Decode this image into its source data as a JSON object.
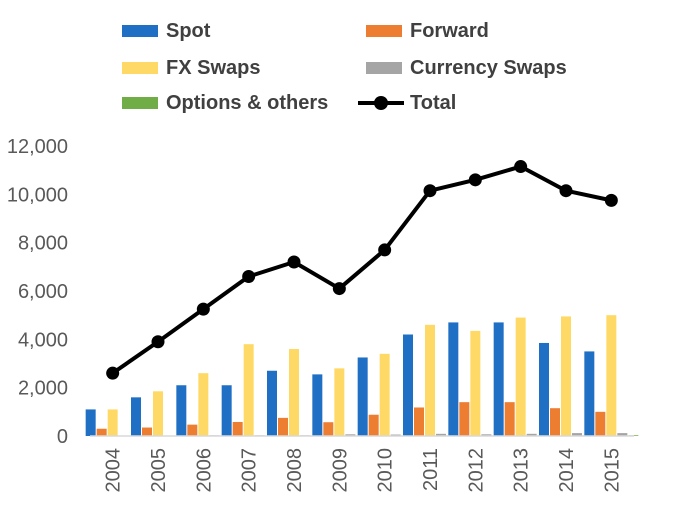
{
  "chart_data": {
    "type": "bar",
    "title": "",
    "xlabel": "",
    "ylabel": "",
    "ylim": [
      0,
      12000
    ],
    "yticks": [
      "0",
      "2,000",
      "4,000",
      "6,000",
      "8,000",
      "10,000",
      "12,000"
    ],
    "ytick_values": [
      0,
      2000,
      4000,
      6000,
      8000,
      10000,
      12000
    ],
    "grid": false,
    "legend_position": "top",
    "categories": [
      "2004",
      "2005",
      "2006",
      "2007",
      "2008",
      "2009",
      "2010",
      "2011",
      "2012",
      "2013",
      "2014",
      "2015"
    ],
    "series": [
      {
        "name": "Spot",
        "kind": "bar",
        "color": "#1F6FC5",
        "values": [
          1100,
          1600,
          2100,
          2100,
          2700,
          2550,
          3250,
          4200,
          4700,
          4700,
          3850,
          3500
        ]
      },
      {
        "name": "Forward",
        "kind": "bar",
        "color": "#ED7D31",
        "values": [
          300,
          350,
          470,
          580,
          750,
          570,
          880,
          1180,
          1400,
          1400,
          1150,
          1000
        ]
      },
      {
        "name": "FX Swaps",
        "kind": "bar",
        "color": "#FFD966",
        "values": [
          1100,
          1850,
          2600,
          3800,
          3600,
          2800,
          3400,
          4600,
          4350,
          4900,
          4950,
          5000
        ]
      },
      {
        "name": "Currency Swaps",
        "kind": "bar",
        "color": "#A5A5A5",
        "values": [
          20,
          20,
          30,
          30,
          30,
          70,
          60,
          90,
          70,
          90,
          120,
          120
        ]
      },
      {
        "name": "Options & others",
        "kind": "bar",
        "color": "#70AD47",
        "values": [
          10,
          10,
          15,
          15,
          15,
          15,
          20,
          25,
          20,
          25,
          25,
          30
        ]
      },
      {
        "name": "Total",
        "kind": "line",
        "color": "#000000",
        "values": [
          2600,
          3900,
          5250,
          6600,
          7200,
          6100,
          7700,
          10150,
          10600,
          11150,
          10150,
          9750
        ]
      }
    ]
  }
}
